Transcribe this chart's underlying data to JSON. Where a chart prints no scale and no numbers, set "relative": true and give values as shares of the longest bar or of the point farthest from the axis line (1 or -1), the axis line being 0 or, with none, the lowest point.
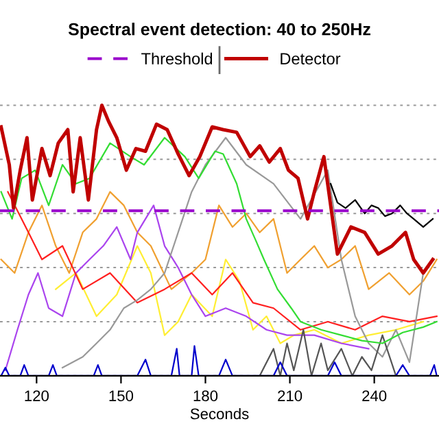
{
  "chart_data": {
    "type": "line",
    "title": "Spectral event detection: 40 to 250Hz",
    "xlabel": "Seconds",
    "relative": true,
    "xlim": [
      107,
      263
    ],
    "xticks": [
      120,
      150,
      180,
      210,
      240
    ],
    "grid": "y",
    "legend": "top",
    "line_style": "solid",
    "marker": "none",
    "ref_lines": [
      {
        "axis": "y",
        "value": 0.61,
        "label": "Threshold",
        "color": "#9900cc",
        "line_style": "dashed"
      }
    ],
    "series": [
      {
        "color": "#ffee33",
        "x": [
          126.8,
          134.0,
          141.3,
          148.5,
          155.8,
          160.6,
          165.5,
          170.3,
          175.1,
          182.4,
          187.2,
          192.1,
          196.9,
          201.7,
          206.6,
          211.4,
          218.7,
          228.3,
          238.0,
          247.7,
          257.4
        ],
        "values": [
          0.32,
          0.38,
          0.22,
          0.3,
          0.48,
          0.38,
          0.15,
          0.2,
          0.3,
          0.22,
          0.43,
          0.35,
          0.17,
          0.22,
          0.12,
          0.15,
          0.17,
          0.12,
          0.15,
          0.17,
          0.2
        ]
      },
      {
        "color": "#f0a030",
        "x": [
          107.4,
          112.2,
          117.1,
          121.9,
          126.8,
          131.6,
          136.4,
          141.3,
          146.1,
          151.0,
          155.8,
          160.6,
          167.9,
          175.1,
          180.0,
          184.8,
          189.6,
          194.5,
          199.3,
          204.2,
          209.0,
          213.8,
          218.7,
          223.5,
          228.3,
          233.2,
          238.0,
          245.3,
          252.5,
          257.4,
          262.2
        ],
        "values": [
          0.43,
          0.38,
          0.53,
          0.63,
          0.48,
          0.38,
          0.53,
          0.58,
          0.68,
          0.63,
          0.53,
          0.48,
          0.32,
          0.38,
          0.43,
          0.63,
          0.55,
          0.6,
          0.53,
          0.58,
          0.38,
          0.43,
          0.48,
          0.4,
          0.43,
          0.48,
          0.32,
          0.38,
          0.3,
          0.35,
          0.43
        ]
      },
      {
        "color": "#aa44ee",
        "x": [
          108.9,
          113.2,
          117.1,
          120.5,
          124.3,
          129.2,
          134.0,
          138.8,
          143.7,
          148.5,
          153.4,
          155.8,
          161.6,
          165.5,
          170.3,
          175.1,
          180.0,
          187.2,
          194.5,
          201.7,
          209.0,
          218.7,
          228.3,
          238.0
        ],
        "values": [
          0.02,
          0.17,
          0.3,
          0.38,
          0.25,
          0.22,
          0.38,
          0.43,
          0.48,
          0.55,
          0.43,
          0.53,
          0.63,
          0.48,
          0.4,
          0.3,
          0.22,
          0.25,
          0.22,
          0.17,
          0.15,
          0.15,
          0.12,
          0.1
        ]
      },
      {
        "color": "#ff2020",
        "x": [
          109.8,
          117.1,
          121.9,
          129.2,
          136.4,
          146.1,
          155.8,
          165.5,
          175.1,
          182.4,
          189.6,
          196.9,
          204.2,
          213.8,
          223.5,
          233.2,
          242.9,
          252.5,
          262.2
        ],
        "values": [
          0.68,
          0.53,
          0.43,
          0.48,
          0.32,
          0.38,
          0.27,
          0.32,
          0.38,
          0.3,
          0.38,
          0.27,
          0.25,
          0.17,
          0.2,
          0.17,
          0.22,
          0.2,
          0.22
        ]
      },
      {
        "color": "#999999",
        "x": [
          129.2,
          136.4,
          141.3,
          146.1,
          151.0,
          155.8,
          160.6,
          165.5,
          170.3,
          175.1,
          180.0,
          187.2,
          194.5,
          204.2,
          213.8,
          223.5,
          228.3,
          233.2,
          238.0,
          242.9,
          247.7,
          252.5,
          257.4
        ],
        "values": [
          0.03,
          0.07,
          0.12,
          0.17,
          0.25,
          0.28,
          0.32,
          0.38,
          0.53,
          0.68,
          0.78,
          0.88,
          0.78,
          0.71,
          0.58,
          0.76,
          0.43,
          0.22,
          0.12,
          0.07,
          0.17,
          0.05,
          0.38
        ]
      },
      {
        "color": "#555555",
        "x": [
          199.3,
          204.2,
          206.6,
          209.0,
          211.4,
          214.8,
          217.7,
          221.1,
          223.5,
          228.3,
          232.2,
          235.6,
          239.0,
          242.9,
          247.7
        ],
        "values": [
          0,
          0.1,
          0,
          0.12,
          0.02,
          0.17,
          0,
          0.12,
          0.02,
          0.1,
          0,
          0.07,
          0.02,
          0.15,
          0
        ]
      },
      {
        "color": "#0000cc",
        "x": [
          107.4,
          108.9,
          110.3,
          114.2,
          115.6,
          117.1,
          124.3,
          125.8,
          127.2,
          140.3,
          141.8,
          143.2,
          155.8,
          158.7,
          160.6,
          167.9,
          169.8,
          170.8,
          175.1,
          176.1,
          177.6,
          184.8,
          187.2,
          189.6,
          204.2,
          206.6,
          209.0,
          223.5,
          225.9,
          228.3,
          247.7,
          250.1,
          252.5,
          259.8,
          261.3,
          262.2
        ],
        "values": [
          0,
          0.03,
          0,
          0,
          0.04,
          0,
          0,
          0.04,
          0,
          0,
          0.04,
          0,
          0,
          0.06,
          0,
          0,
          0.1,
          0,
          0,
          0.11,
          0,
          0,
          0.06,
          0,
          0,
          0.05,
          0,
          0,
          0.05,
          0,
          0,
          0.04,
          0,
          0,
          0.04,
          0
        ]
      },
      {
        "color": "#33dd33",
        "x": [
          107.4,
          111.3,
          114.7,
          119.5,
          124.3,
          129.2,
          134.0,
          138.8,
          146.1,
          153.4,
          158.2,
          165.5,
          172.7,
          177.6,
          183.4,
          186.3,
          191.1,
          194.5,
          197.9,
          200.8,
          205.6,
          210.5,
          213.8,
          221.1,
          228.3,
          235.6,
          242.9,
          250.1,
          257.4,
          262.2
        ],
        "values": [
          0.68,
          0.58,
          0.73,
          0.76,
          0.63,
          0.78,
          0.71,
          0.73,
          0.86,
          0.81,
          0.78,
          0.88,
          0.81,
          0.73,
          0.83,
          0.82,
          0.71,
          0.58,
          0.5,
          0.43,
          0.32,
          0.25,
          0.2,
          0.17,
          0.15,
          0.13,
          0.12,
          0.16,
          0.18,
          0.2
        ]
      },
      {
        "color": "#000000",
        "x": [
          224.5,
          226.9,
          229.8,
          233.2,
          236.6,
          239.0,
          241.4,
          243.8,
          246.3,
          249.2,
          251.6,
          254.0,
          257.4,
          260.8
        ],
        "values": [
          0.71,
          0.64,
          0.62,
          0.65,
          0.6,
          0.63,
          0.62,
          0.59,
          0.6,
          0.63,
          0.6,
          0.58,
          0.55,
          0.58
        ]
      },
      {
        "name": "Detector",
        "color": "#c00000",
        "x": [
          107.4,
          110.3,
          111.8,
          114.2,
          116.6,
          118.5,
          121.9,
          124.8,
          127.7,
          131.1,
          133.0,
          135.5,
          138.4,
          141.3,
          143.2,
          145.6,
          148.5,
          151.9,
          155.3,
          158.7,
          162.6,
          166.4,
          170.3,
          174.2,
          178.0,
          182.4,
          186.3,
          191.1,
          195.9,
          199.3,
          202.7,
          206.6,
          209.5,
          212.9,
          216.3,
          218.7,
          222.1,
          224.5,
          226.9,
          231.7,
          236.6,
          241.4,
          246.3,
          251.1,
          254.0,
          257.4,
          260.8
        ],
        "values": [
          0.92,
          0.78,
          0.62,
          0.76,
          0.88,
          0.65,
          0.84,
          0.74,
          0.86,
          0.91,
          0.68,
          0.88,
          0.65,
          0.91,
          1,
          0.94,
          0.88,
          0.76,
          0.84,
          0.83,
          0.93,
          0.91,
          0.82,
          0.74,
          0.81,
          0.92,
          0.91,
          0.9,
          0.81,
          0.85,
          0.79,
          0.84,
          0.76,
          0.73,
          0.58,
          0.68,
          0.81,
          0.63,
          0.45,
          0.55,
          0.53,
          0.45,
          0.48,
          0.53,
          0.43,
          0.38,
          0.43
        ]
      }
    ]
  }
}
